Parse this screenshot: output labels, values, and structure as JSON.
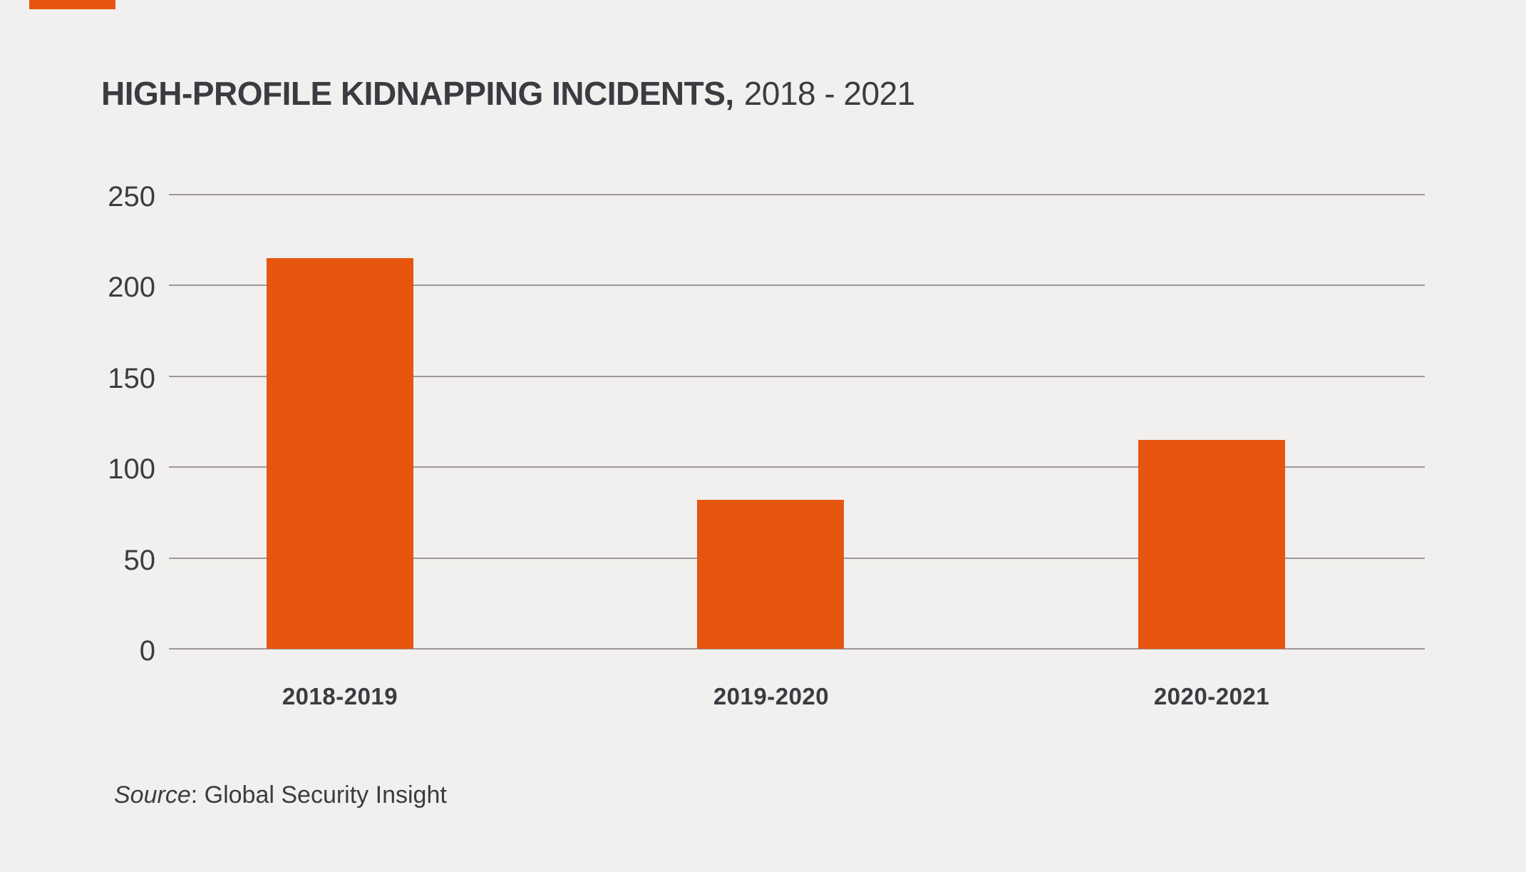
{
  "colors": {
    "background": "#f1f0ee",
    "accent": "#e6560e",
    "text": "#3b3b42",
    "gridline": "#9d989c"
  },
  "title": {
    "bold": "HIGH-PROFILE KIDNAPPING INCIDENTS,",
    "regular": "2018 - 2021"
  },
  "source": {
    "italic": "Source",
    "rest": ": Global Security Insight"
  },
  "chart_data": {
    "type": "bar",
    "title": "HIGH-PROFILE KIDNAPPING INCIDENTS, 2018 - 2021",
    "categories": [
      "2018-2019",
      "2019-2020",
      "2020-2021"
    ],
    "values": [
      215,
      82,
      115
    ],
    "xlabel": "",
    "ylabel": "",
    "ylim": [
      0,
      250
    ],
    "yticks": [
      0,
      50,
      100,
      150,
      200,
      250
    ],
    "bar_color": "#e6560e",
    "grid": true,
    "legend": "none",
    "source": "Source: Global Security Insight"
  }
}
